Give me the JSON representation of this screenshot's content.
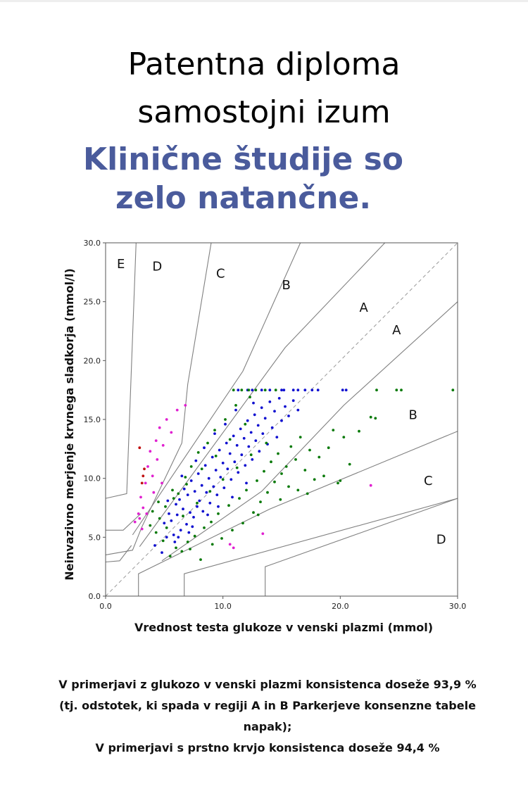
{
  "header": {
    "title_line1": "Patentna diploma",
    "title_line2": "samostojni izum",
    "subtitle_line1": "Klinične študije so",
    "subtitle_line2": "zelo natančne."
  },
  "colors": {
    "subtitle": "#4a5b9c",
    "zone_lines": "#808080",
    "diagonal": "#9a9a9a",
    "point_blue": "#1010d0",
    "point_green": "#0a7a0a",
    "point_magenta": "#e020d0",
    "point_red": "#c01010"
  },
  "chart_data": {
    "type": "scatter",
    "title": "",
    "xlabel": "Vrednost testa glukoze v venski plazmi (mmol)",
    "ylabel": "Neinvazivno merjenje krvnega sladkorja (mmol/l)",
    "xlim": [
      0,
      30
    ],
    "ylim": [
      0,
      30
    ],
    "x_ticks": [
      "0.0",
      "10.0",
      "20.0",
      "30.0"
    ],
    "y_ticks": [
      "0.0",
      "5.0",
      "10.0",
      "15.0",
      "20.0",
      "25.0",
      "30.0"
    ],
    "grid": false,
    "diagonal_reference": true,
    "zone_labels": [
      {
        "text": "E",
        "x": 1.3,
        "y": 28.2
      },
      {
        "text": "D",
        "x": 4.4,
        "y": 28.0
      },
      {
        "text": "C",
        "x": 9.8,
        "y": 27.4
      },
      {
        "text": "B",
        "x": 15.4,
        "y": 26.4
      },
      {
        "text": "A",
        "x": 22.0,
        "y": 24.5
      },
      {
        "text": "A",
        "x": 24.8,
        "y": 22.6
      },
      {
        "text": "B",
        "x": 26.2,
        "y": 15.4
      },
      {
        "text": "C",
        "x": 27.5,
        "y": 9.8
      },
      {
        "text": "D",
        "x": 28.6,
        "y": 4.8
      }
    ],
    "zone_boundaries": [
      {
        "name": "upper-A-B",
        "points": [
          [
            2.9,
            4.2
          ],
          [
            15.3,
            21.1
          ],
          [
            23.8,
            30
          ]
        ]
      },
      {
        "name": "lower-A-B",
        "points": [
          [
            4.8,
            3.0
          ],
          [
            13.3,
            8.9
          ],
          [
            20.3,
            16.2
          ],
          [
            30,
            25
          ]
        ]
      },
      {
        "name": "upper-B-C",
        "points": [
          [
            2.3,
            5.2
          ],
          [
            11.7,
            19.1
          ],
          [
            16.6,
            30
          ]
        ]
      },
      {
        "name": "lower-B-C",
        "points": [
          [
            2.8,
            0
          ],
          [
            2.8,
            1.9
          ],
          [
            14.0,
            7.4
          ],
          [
            30,
            14
          ]
        ]
      },
      {
        "name": "upper-C-D",
        "points": [
          [
            0,
            3.5
          ],
          [
            2.3,
            3.9
          ],
          [
            3.1,
            5.9
          ],
          [
            6.5,
            13.0
          ],
          [
            7.0,
            18.0
          ],
          [
            9.0,
            30
          ]
        ]
      },
      {
        "name": "lower-C-D",
        "points": [
          [
            6.7,
            0
          ],
          [
            6.7,
            1.9
          ],
          [
            30,
            8.3
          ]
        ]
      },
      {
        "name": "upper-D-E",
        "points": [
          [
            0,
            8.3
          ],
          [
            1.8,
            8.7
          ],
          [
            2.6,
            30
          ]
        ]
      },
      {
        "name": "lower-D-E",
        "points": [
          [
            13.6,
            0
          ],
          [
            13.6,
            2.5
          ],
          [
            30,
            8.3
          ]
        ]
      },
      {
        "name": "D-left",
        "points": [
          [
            0,
            5.6
          ],
          [
            1.5,
            5.6
          ],
          [
            3.0,
            7.0
          ]
        ]
      },
      {
        "name": "D-left-low",
        "points": [
          [
            0,
            2.9
          ],
          [
            1.2,
            3.0
          ],
          [
            2.2,
            4.3
          ]
        ]
      }
    ],
    "series": [
      {
        "color": "blue",
        "points": [
          [
            4.2,
            4.3
          ],
          [
            4.8,
            3.7
          ],
          [
            5.0,
            6.2
          ],
          [
            5.2,
            5.0
          ],
          [
            5.4,
            7.0
          ],
          [
            5.6,
            6.4
          ],
          [
            5.8,
            5.2
          ],
          [
            6.0,
            7.8
          ],
          [
            6.1,
            6.9
          ],
          [
            6.3,
            8.2
          ],
          [
            6.4,
            5.6
          ],
          [
            6.6,
            7.4
          ],
          [
            6.7,
            9.1
          ],
          [
            6.9,
            6.1
          ],
          [
            7.0,
            8.6
          ],
          [
            7.2,
            7.1
          ],
          [
            7.3,
            9.8
          ],
          [
            7.5,
            6.7
          ],
          [
            7.6,
            8.9
          ],
          [
            7.8,
            7.6
          ],
          [
            7.9,
            10.4
          ],
          [
            8.0,
            8.1
          ],
          [
            8.2,
            9.4
          ],
          [
            8.3,
            7.2
          ],
          [
            8.5,
            11.1
          ],
          [
            8.6,
            8.8
          ],
          [
            8.8,
            10.0
          ],
          [
            8.9,
            7.9
          ],
          [
            9.1,
            11.8
          ],
          [
            9.2,
            9.3
          ],
          [
            9.4,
            10.7
          ],
          [
            9.5,
            8.6
          ],
          [
            9.7,
            12.4
          ],
          [
            9.8,
            10.1
          ],
          [
            10.0,
            11.3
          ],
          [
            10.1,
            9.2
          ],
          [
            10.3,
            13.0
          ],
          [
            10.4,
            10.8
          ],
          [
            10.6,
            12.1
          ],
          [
            10.7,
            9.9
          ],
          [
            10.9,
            13.6
          ],
          [
            11.0,
            11.4
          ],
          [
            11.2,
            12.8
          ],
          [
            11.3,
            10.5
          ],
          [
            11.5,
            14.2
          ],
          [
            11.6,
            12.0
          ],
          [
            11.8,
            13.4
          ],
          [
            11.9,
            11.1
          ],
          [
            12.1,
            14.9
          ],
          [
            12.2,
            12.7
          ],
          [
            12.4,
            13.9
          ],
          [
            12.5,
            11.6
          ],
          [
            12.7,
            15.4
          ],
          [
            12.8,
            13.2
          ],
          [
            13.0,
            14.5
          ],
          [
            13.1,
            12.3
          ],
          [
            13.3,
            16.0
          ],
          [
            13.4,
            13.8
          ],
          [
            13.6,
            15.1
          ],
          [
            13.8,
            12.9
          ],
          [
            14.0,
            16.5
          ],
          [
            14.2,
            14.3
          ],
          [
            14.4,
            15.7
          ],
          [
            14.6,
            13.5
          ],
          [
            14.8,
            16.8
          ],
          [
            15.0,
            14.9
          ],
          [
            15.3,
            16.1
          ],
          [
            15.6,
            15.3
          ],
          [
            16.0,
            16.6
          ],
          [
            16.4,
            15.8
          ],
          [
            11.3,
            17.5
          ],
          [
            12.1,
            17.5
          ],
          [
            12.5,
            17.5
          ],
          [
            13.3,
            17.5
          ],
          [
            14.0,
            17.5
          ],
          [
            15.0,
            17.5
          ],
          [
            15.2,
            17.5
          ],
          [
            16.0,
            17.5
          ],
          [
            16.4,
            17.5
          ],
          [
            17.0,
            17.5
          ],
          [
            17.6,
            17.5
          ],
          [
            18.1,
            17.5
          ],
          [
            20.2,
            17.5
          ],
          [
            20.5,
            17.5
          ],
          [
            6.2,
            5.0
          ],
          [
            7.4,
            5.9
          ],
          [
            8.7,
            6.9
          ],
          [
            9.6,
            7.6
          ],
          [
            10.8,
            8.4
          ],
          [
            12.0,
            9.6
          ],
          [
            5.3,
            8.1
          ],
          [
            6.5,
            10.2
          ],
          [
            7.7,
            11.5
          ],
          [
            8.4,
            12.6
          ],
          [
            9.3,
            13.8
          ],
          [
            10.2,
            14.6
          ],
          [
            11.1,
            15.8
          ],
          [
            12.6,
            16.4
          ],
          [
            5.9,
            4.6
          ],
          [
            7.1,
            5.4
          ]
        ]
      },
      {
        "color": "green",
        "points": [
          [
            3.8,
            6.0
          ],
          [
            4.0,
            7.2
          ],
          [
            4.3,
            5.4
          ],
          [
            4.5,
            8.0
          ],
          [
            4.9,
            4.7
          ],
          [
            5.1,
            7.6
          ],
          [
            5.5,
            3.4
          ],
          [
            5.7,
            9.0
          ],
          [
            6.0,
            4.1
          ],
          [
            6.2,
            8.7
          ],
          [
            6.5,
            3.8
          ],
          [
            6.8,
            10.1
          ],
          [
            7.0,
            4.6
          ],
          [
            7.3,
            11.0
          ],
          [
            7.6,
            5.1
          ],
          [
            7.9,
            12.2
          ],
          [
            8.1,
            3.1
          ],
          [
            8.4,
            5.8
          ],
          [
            8.7,
            13.0
          ],
          [
            9.0,
            6.3
          ],
          [
            9.3,
            14.1
          ],
          [
            9.6,
            7.0
          ],
          [
            9.9,
            4.9
          ],
          [
            10.2,
            15.0
          ],
          [
            10.5,
            7.7
          ],
          [
            10.8,
            5.6
          ],
          [
            11.1,
            16.2
          ],
          [
            11.4,
            8.3
          ],
          [
            11.7,
            6.2
          ],
          [
            12.0,
            9.0
          ],
          [
            12.3,
            16.9
          ],
          [
            12.6,
            7.1
          ],
          [
            12.9,
            9.8
          ],
          [
            13.2,
            8.0
          ],
          [
            13.5,
            10.6
          ],
          [
            13.8,
            8.8
          ],
          [
            14.1,
            11.4
          ],
          [
            14.4,
            9.7
          ],
          [
            14.7,
            12.1
          ],
          [
            15.0,
            10.4
          ],
          [
            15.4,
            11.0
          ],
          [
            15.8,
            12.7
          ],
          [
            16.2,
            11.6
          ],
          [
            16.6,
            13.5
          ],
          [
            17.0,
            10.7
          ],
          [
            17.4,
            12.4
          ],
          [
            17.8,
            9.9
          ],
          [
            18.2,
            11.8
          ],
          [
            18.6,
            10.2
          ],
          [
            19.0,
            12.6
          ],
          [
            19.4,
            14.1
          ],
          [
            19.8,
            9.6
          ],
          [
            20.3,
            13.5
          ],
          [
            20.8,
            11.2
          ],
          [
            21.6,
            14.0
          ],
          [
            22.6,
            15.2
          ],
          [
            23.0,
            15.1
          ],
          [
            20.0,
            9.8
          ],
          [
            17.2,
            8.7
          ],
          [
            15.6,
            9.3
          ],
          [
            10.9,
            17.5
          ],
          [
            11.6,
            17.5
          ],
          [
            12.2,
            17.5
          ],
          [
            12.8,
            17.5
          ],
          [
            13.6,
            17.5
          ],
          [
            14.5,
            17.5
          ],
          [
            23.1,
            17.5
          ],
          [
            24.8,
            17.5
          ],
          [
            25.2,
            17.5
          ],
          [
            29.6,
            17.5
          ],
          [
            5.2,
            5.8
          ],
          [
            6.6,
            6.8
          ],
          [
            7.8,
            7.9
          ],
          [
            8.9,
            8.9
          ],
          [
            10.0,
            9.9
          ],
          [
            11.2,
            10.9
          ],
          [
            12.4,
            12.0
          ],
          [
            13.7,
            13.0
          ],
          [
            5.8,
            8.3
          ],
          [
            6.9,
            9.5
          ],
          [
            8.2,
            10.8
          ],
          [
            9.4,
            11.9
          ],
          [
            10.6,
            13.3
          ],
          [
            11.9,
            14.6
          ],
          [
            4.6,
            6.6
          ],
          [
            7.2,
            4.0
          ],
          [
            9.1,
            4.4
          ],
          [
            13.0,
            6.9
          ],
          [
            14.9,
            8.2
          ],
          [
            16.4,
            9.0
          ]
        ]
      },
      {
        "color": "magenta",
        "points": [
          [
            2.5,
            6.3
          ],
          [
            2.8,
            7.0
          ],
          [
            3.0,
            8.4
          ],
          [
            3.2,
            7.5
          ],
          [
            3.4,
            9.6
          ],
          [
            3.6,
            11.0
          ],
          [
            3.8,
            12.3
          ],
          [
            4.0,
            10.2
          ],
          [
            4.3,
            13.2
          ],
          [
            4.6,
            14.3
          ],
          [
            4.9,
            12.8
          ],
          [
            5.2,
            15.0
          ],
          [
            5.6,
            13.9
          ],
          [
            6.1,
            15.8
          ],
          [
            6.8,
            16.2
          ],
          [
            3.1,
            5.7
          ],
          [
            3.5,
            7.0
          ],
          [
            4.1,
            8.8
          ],
          [
            4.8,
            9.6
          ],
          [
            10.6,
            4.4
          ],
          [
            10.9,
            4.1
          ],
          [
            13.4,
            5.3
          ],
          [
            22.6,
            9.4
          ],
          [
            2.9,
            6.6
          ],
          [
            4.4,
            11.6
          ]
        ]
      },
      {
        "color": "red",
        "points": [
          [
            2.9,
            12.6
          ],
          [
            3.2,
            10.2
          ],
          [
            3.3,
            10.8
          ],
          [
            3.1,
            9.6
          ]
        ]
      }
    ]
  },
  "footnote": {
    "line1": "V primerjavi z glukozo v venski plazmi konsistenca doseže 93,9 %",
    "line2": "(tj. odstotek, ki spada v regiji A in B Parkerjeve konsenzne tabele",
    "line3": "napak);",
    "line4": "V primerjavi s prstno krvjo konsistenca doseže 94,4 %"
  }
}
